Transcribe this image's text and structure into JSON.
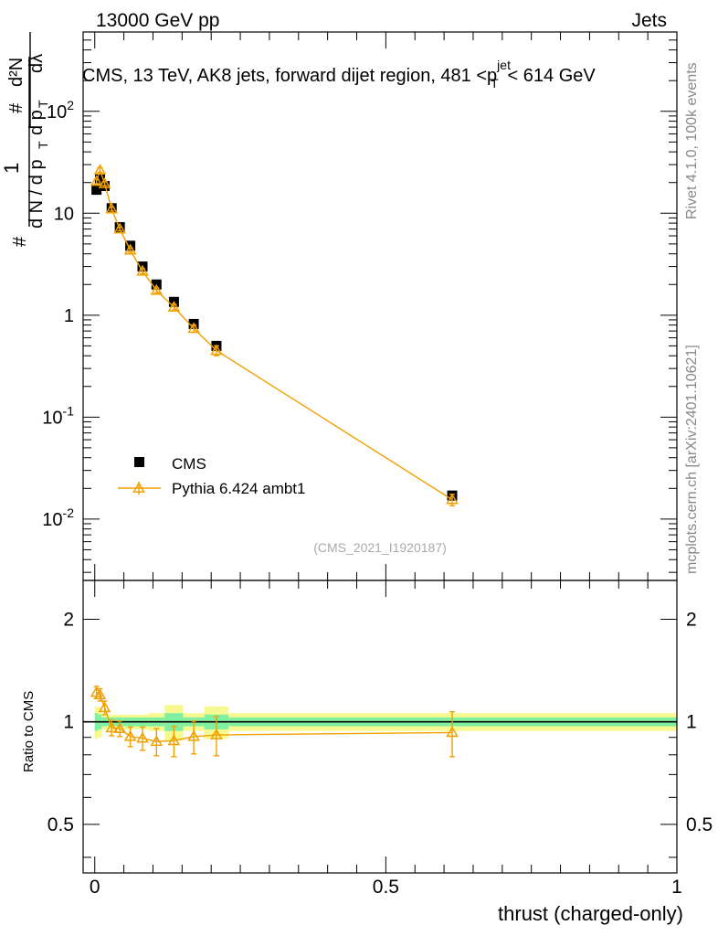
{
  "header": {
    "energy_label": "13000 GeV pp",
    "category_label": "Jets",
    "side_rivet": "Rivet 4.1.0,  100k events",
    "side_site": "mcplots.cern.ch [arXiv:2401.10621]",
    "analysis_id": "(CMS_2021_I1920187)"
  },
  "colors": {
    "data": "#000000",
    "mc": "#f0a000",
    "band_inner": "#80f0a0",
    "band_outer": "#f8f890"
  },
  "chart_data": [
    {
      "type": "scatter",
      "title": "CMS, 13 TeV, AK8 jets, forward dijet region, 481 <p_T^{jet}< 614 GeV",
      "ylabel": "1/(dN/dp_T) d^2N/(dp_T dλ)",
      "yscale": "log",
      "xlim": [
        -0.02,
        1.0
      ],
      "ylim": [
        0.0025,
        600
      ],
      "y_ticks": [
        {
          "value": 0.01,
          "label": "10^{-2}"
        },
        {
          "value": 0.1,
          "label": "10^{-1}"
        },
        {
          "value": 1,
          "label": "1"
        },
        {
          "value": 10,
          "label": "10"
        },
        {
          "value": 100,
          "label": "10^{2}"
        }
      ],
      "legend": {
        "position": "bottom-left",
        "entries": [
          "CMS",
          "Pythia 6.424 ambt1"
        ]
      },
      "series": [
        {
          "name": "CMS",
          "marker": "square",
          "x": [
            0.003,
            0.009,
            0.017,
            0.029,
            0.043,
            0.061,
            0.082,
            0.106,
            0.136,
            0.17,
            0.209,
            0.614
          ],
          "y": [
            17.0,
            22.0,
            18.5,
            11.2,
            7.3,
            4.8,
            3.0,
            2.0,
            1.35,
            0.82,
            0.5,
            0.017
          ]
        },
        {
          "name": "Pythia 6.424 ambt1",
          "marker": "triangle",
          "x": [
            0.003,
            0.009,
            0.017,
            0.029,
            0.043,
            0.061,
            0.082,
            0.106,
            0.136,
            0.17,
            0.209,
            0.614
          ],
          "y": [
            20.5,
            26.5,
            19.5,
            11.0,
            7.0,
            4.35,
            2.7,
            1.75,
            1.2,
            0.74,
            0.45,
            0.0155
          ],
          "yerr": [
            1.0,
            1.5,
            0.9,
            0.5,
            0.3,
            0.2,
            0.15,
            0.1,
            0.08,
            0.06,
            0.05,
            0.002
          ]
        }
      ]
    },
    {
      "type": "scatter",
      "ylabel": "Ratio to CMS",
      "xlabel": "thrust (charged-only)",
      "yscale": "log",
      "xlim": [
        -0.02,
        1.0
      ],
      "ylim": [
        0.36,
        2.6
      ],
      "x_ticks": [
        {
          "value": 0,
          "label": "0"
        },
        {
          "value": 0.5,
          "label": "0.5"
        },
        {
          "value": 1,
          "label": "1"
        }
      ],
      "y_ticks": [
        {
          "value": 0.5,
          "label": "0.5"
        },
        {
          "value": 1,
          "label": "1"
        },
        {
          "value": 2,
          "label": "2"
        }
      ],
      "reference_line": 1.0,
      "series": [
        {
          "name": "Pythia 6.424 ambt1 / CMS",
          "x": [
            0.003,
            0.009,
            0.017,
            0.029,
            0.043,
            0.061,
            0.082,
            0.106,
            0.136,
            0.17,
            0.209,
            0.614
          ],
          "y": [
            1.22,
            1.2,
            1.1,
            0.96,
            0.955,
            0.905,
            0.895,
            0.875,
            0.88,
            0.905,
            0.915,
            0.93
          ],
          "yerr": [
            0.05,
            0.05,
            0.05,
            0.05,
            0.05,
            0.06,
            0.07,
            0.08,
            0.09,
            0.1,
            0.12,
            0.14
          ]
        }
      ],
      "bands": {
        "edges": [
          0.0,
          0.006,
          0.012,
          0.022,
          0.036,
          0.05,
          0.072,
          0.092,
          0.12,
          0.152,
          0.188,
          0.23,
          1.0
        ],
        "inner": [
          0.06,
          0.05,
          0.03,
          0.03,
          0.03,
          0.03,
          0.03,
          0.03,
          0.06,
          0.03,
          0.05,
          0.03
        ],
        "outer": [
          0.11,
          0.1,
          0.05,
          0.05,
          0.05,
          0.05,
          0.05,
          0.06,
          0.12,
          0.06,
          0.11,
          0.06
        ]
      }
    }
  ]
}
